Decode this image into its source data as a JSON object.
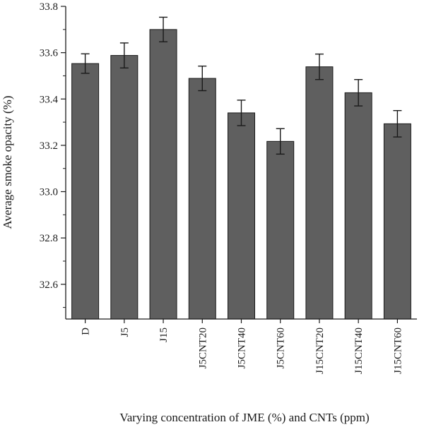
{
  "colors": {
    "bar_fill": "#5f5f5f",
    "bar_stroke": "#1a1a1a",
    "axis": "#1a1a1a"
  },
  "chart_data": {
    "type": "bar",
    "title": "",
    "xlabel": "Varying concentration of JME (%) and CNTs (ppm)",
    "ylabel": "Average smoke opacity (%)",
    "categories": [
      "D",
      "J5",
      "J15",
      "J5CNT20",
      "J5CNT40",
      "J5CNT60",
      "J15CNT20",
      "J15CNT40",
      "J15CNT60"
    ],
    "values": [
      33.553,
      33.588,
      33.7,
      33.489,
      33.34,
      33.217,
      33.539,
      33.427,
      33.293
    ],
    "errors": [
      0.042,
      0.054,
      0.053,
      0.053,
      0.055,
      0.055,
      0.055,
      0.057,
      0.057
    ],
    "ylim": [
      32.45,
      33.8
    ],
    "yticks": [
      "32.6",
      "32.8",
      "33.0",
      "33.2",
      "33.4",
      "33.6",
      "33.8"
    ],
    "grid": false,
    "legend": "none"
  }
}
